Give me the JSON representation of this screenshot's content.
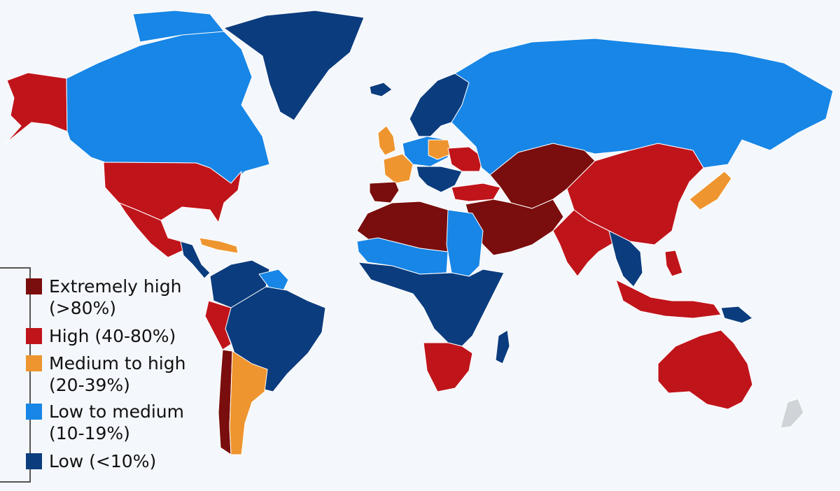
{
  "colors": {
    "background": "#f4f7fb",
    "extremely_high": "#7a0d0d",
    "high": "#c0141b",
    "medium_to_high": "#ee952f",
    "low_to_medium": "#1786e6",
    "low": "#0b3c7e",
    "no_data": "#d0d3d7",
    "border": "#ffffff"
  },
  "legend": {
    "items": [
      {
        "key": "extremely_high",
        "line1": "Extremely high",
        "line2": "(>80%)"
      },
      {
        "key": "high",
        "line1": "High (40-80%)",
        "line2": ""
      },
      {
        "key": "medium_to_high",
        "line1": "Medium to high",
        "line2": "(20-39%)"
      },
      {
        "key": "low_to_medium",
        "line1": "Low to medium",
        "line2": "(10-19%)"
      },
      {
        "key": "low",
        "line1": "Low (<10%)",
        "line2": ""
      }
    ]
  },
  "regions": [
    {
      "name": "Alaska",
      "category": "high"
    },
    {
      "name": "Canada",
      "category": "low_to_medium"
    },
    {
      "name": "Greenland",
      "category": "low"
    },
    {
      "name": "United States",
      "category": "high"
    },
    {
      "name": "Mexico",
      "category": "high"
    },
    {
      "name": "Central America",
      "category": "low"
    },
    {
      "name": "Caribbean",
      "category": "medium_to_high"
    },
    {
      "name": "Colombia / Venezuela",
      "category": "low"
    },
    {
      "name": "Guianas",
      "category": "low_to_medium"
    },
    {
      "name": "Brazil",
      "category": "low"
    },
    {
      "name": "Peru",
      "category": "high"
    },
    {
      "name": "Chile",
      "category": "extremely_high"
    },
    {
      "name": "Argentina",
      "category": "medium_to_high"
    },
    {
      "name": "Iceland",
      "category": "low"
    },
    {
      "name": "Scandinavia",
      "category": "low"
    },
    {
      "name": "United Kingdom",
      "category": "medium_to_high"
    },
    {
      "name": "France",
      "category": "medium_to_high"
    },
    {
      "name": "Spain",
      "category": "extremely_high"
    },
    {
      "name": "Central Europe",
      "category": "low_to_medium"
    },
    {
      "name": "Poland",
      "category": "medium_to_high"
    },
    {
      "name": "Ukraine",
      "category": "high"
    },
    {
      "name": "Balkans",
      "category": "low"
    },
    {
      "name": "Russia",
      "category": "low_to_medium"
    },
    {
      "name": "Turkey",
      "category": "high"
    },
    {
      "name": "Kazakhstan / Central Asia",
      "category": "extremely_high"
    },
    {
      "name": "Middle East",
      "category": "extremely_high"
    },
    {
      "name": "North Africa",
      "category": "extremely_high"
    },
    {
      "name": "Egypt / Sudan",
      "category": "low_to_medium"
    },
    {
      "name": "Sahel",
      "category": "low_to_medium"
    },
    {
      "name": "Central Africa",
      "category": "low"
    },
    {
      "name": "Southern Africa",
      "category": "high"
    },
    {
      "name": "Madagascar",
      "category": "low"
    },
    {
      "name": "China / Mongolia",
      "category": "high"
    },
    {
      "name": "India",
      "category": "high"
    },
    {
      "name": "Southeast Asia",
      "category": "low"
    },
    {
      "name": "Japan",
      "category": "medium_to_high"
    },
    {
      "name": "Indonesia / Philippines",
      "category": "high"
    },
    {
      "name": "Papua New Guinea",
      "category": "low"
    },
    {
      "name": "Australia",
      "category": "high"
    },
    {
      "name": "New Zealand",
      "category": "no_data"
    }
  ]
}
